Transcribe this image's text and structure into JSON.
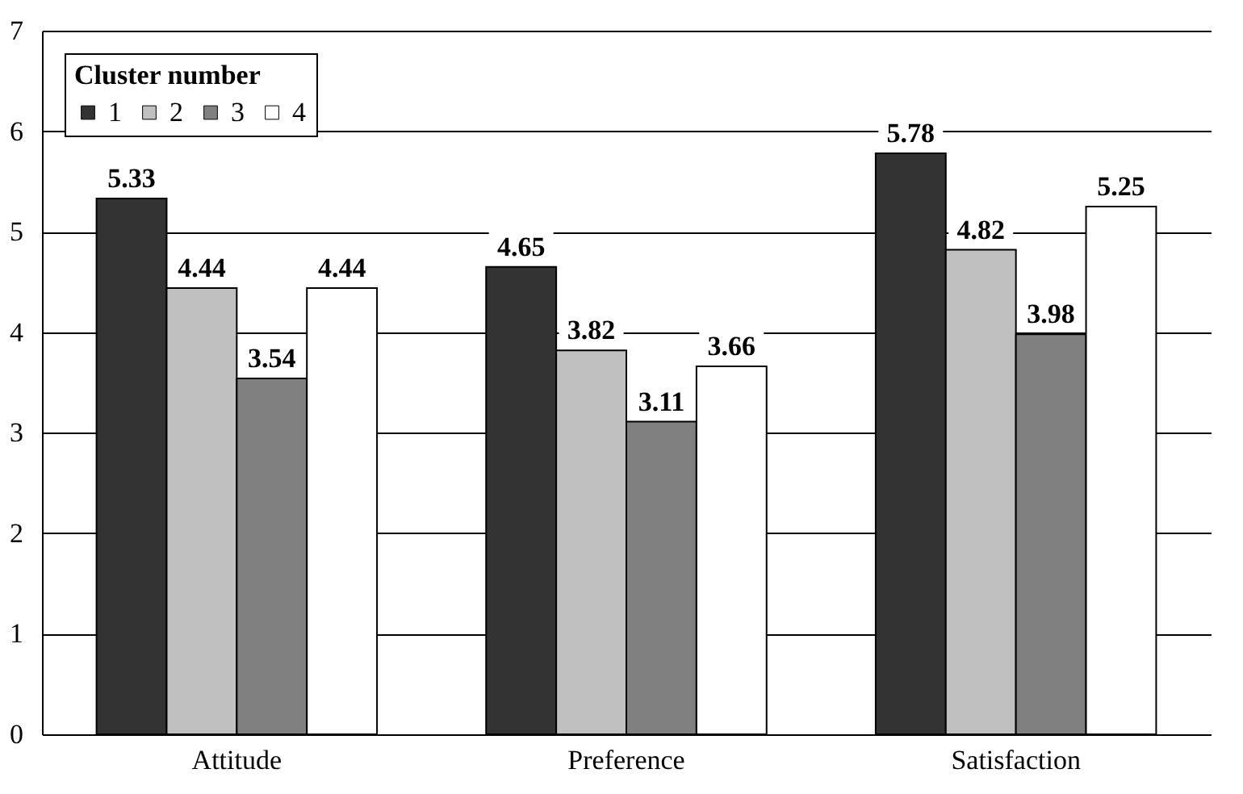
{
  "chart_data": {
    "type": "bar",
    "legend_title": "Cluster number",
    "categories": [
      "Attitude",
      "Preference",
      "Satisfaction"
    ],
    "series": [
      {
        "name": "1",
        "color": "#333333",
        "values": [
          5.33,
          4.65,
          5.78
        ]
      },
      {
        "name": "2",
        "color": "#c0c0c0",
        "values": [
          4.44,
          3.82,
          4.82
        ]
      },
      {
        "name": "3",
        "color": "#808080",
        "values": [
          3.54,
          3.11,
          3.98
        ]
      },
      {
        "name": "4",
        "color": "#ffffff",
        "values": [
          4.44,
          3.66,
          5.25
        ]
      }
    ],
    "ylim": [
      0,
      7
    ],
    "yticks": [
      0,
      1,
      2,
      3,
      4,
      5,
      6,
      7
    ],
    "grid": "y",
    "legend": "top left",
    "data_labels": true
  }
}
